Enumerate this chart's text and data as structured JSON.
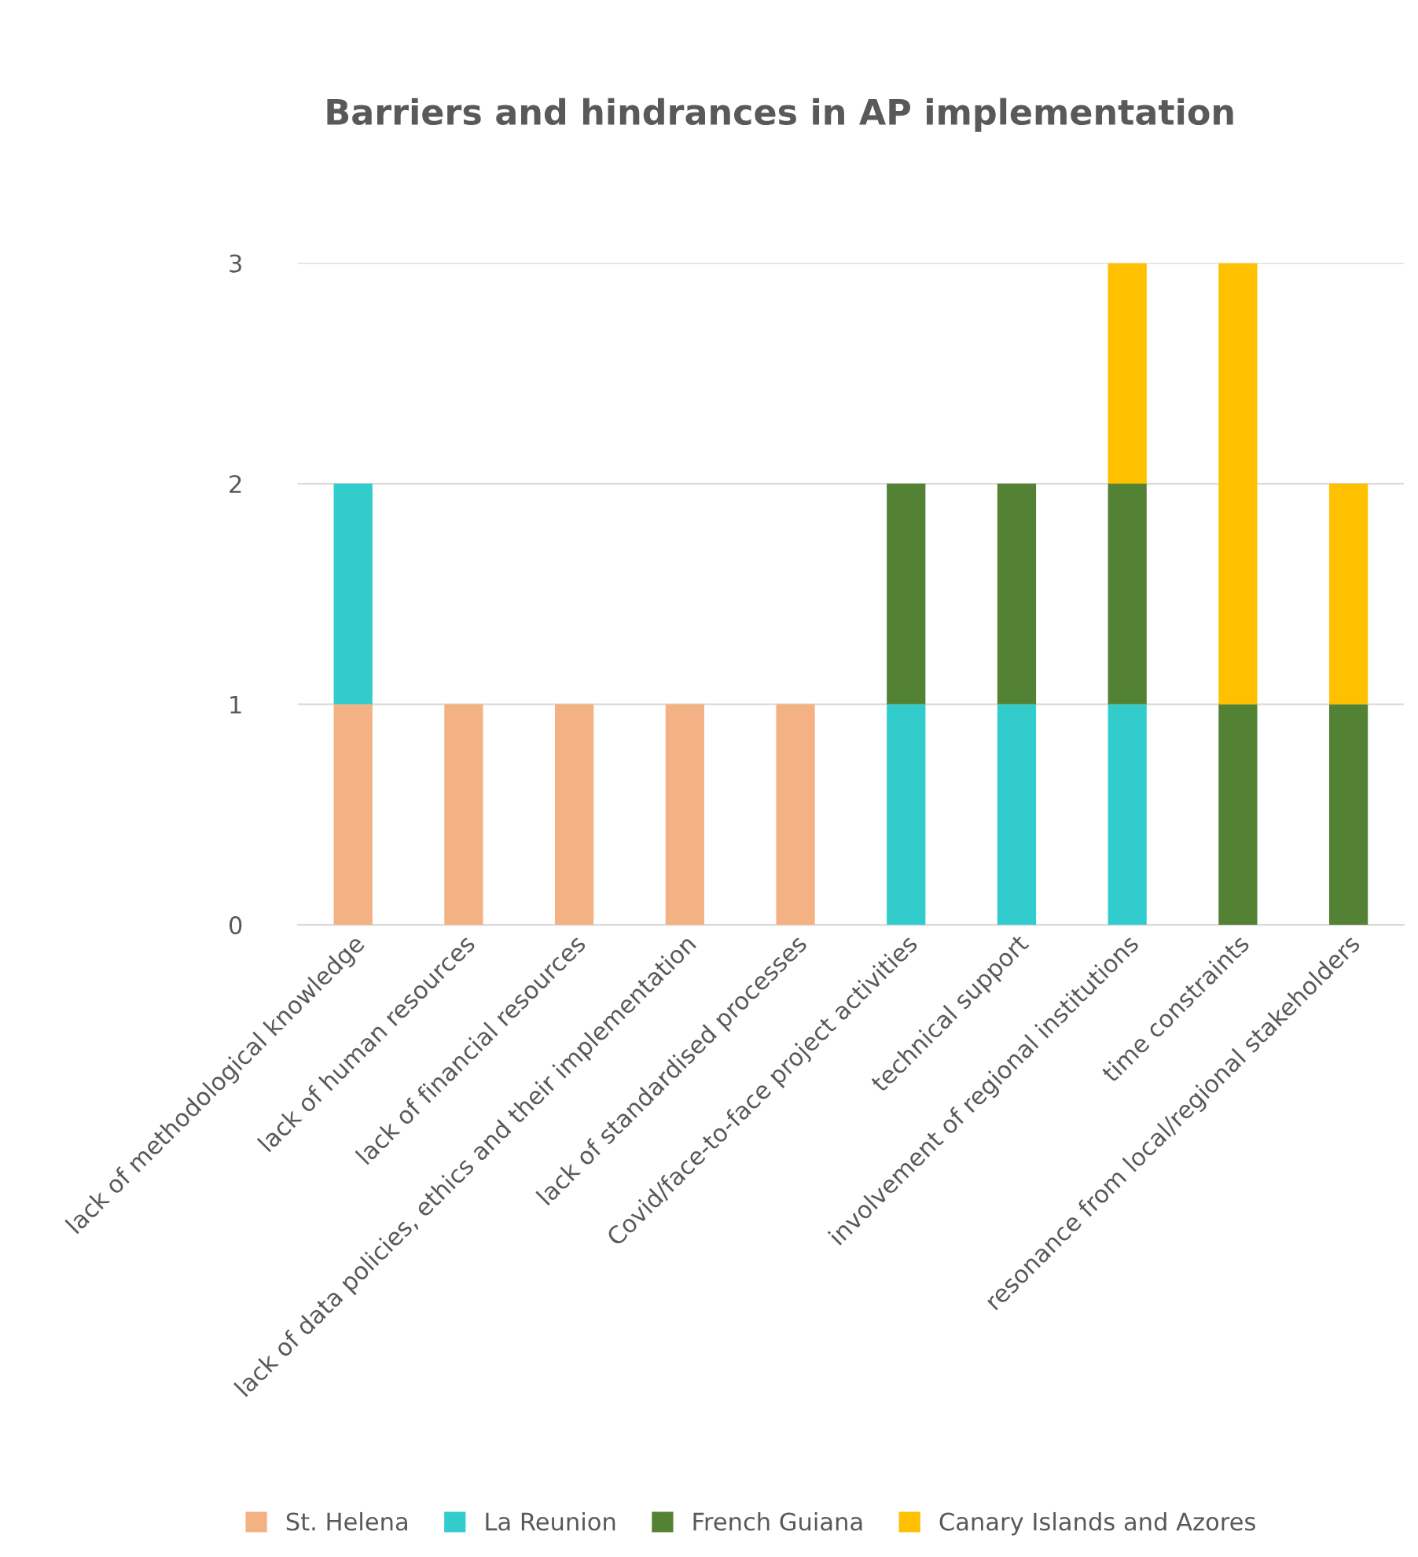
{
  "chart_data": {
    "type": "bar",
    "stacked": true,
    "title": "Barriers and hindrances in AP implementation",
    "categories": [
      "lack of methodological knowledge",
      "lack of human resources",
      "lack of financial resources",
      "lack of data policies, ethics and their implementation",
      "lack of standardised processes",
      "Covid/face-to-face project activities",
      "technical support",
      "involvement of regional institutions",
      "time constraints",
      "resonance from local/regional stakeholders"
    ],
    "series": [
      {
        "name": "St. Helena",
        "color": "#f4b183",
        "values": [
          1,
          1,
          1,
          1,
          1,
          null,
          null,
          null,
          null,
          null
        ]
      },
      {
        "name": "La Reunion",
        "color": "#33cccc",
        "values": [
          1,
          null,
          null,
          null,
          null,
          1,
          1,
          1,
          null,
          null
        ]
      },
      {
        "name": "French Guiana",
        "color": "#548235",
        "values": [
          null,
          null,
          null,
          null,
          null,
          1,
          1,
          1,
          1,
          1
        ]
      },
      {
        "name": "Canary Islands and Azores",
        "color": "#ffc000",
        "values": [
          null,
          null,
          null,
          null,
          null,
          null,
          null,
          1,
          2,
          1
        ]
      }
    ],
    "ylim": [
      0,
      3
    ],
    "yticks": [
      0,
      1,
      2,
      3
    ],
    "grid": "y",
    "legend": "bottom"
  }
}
